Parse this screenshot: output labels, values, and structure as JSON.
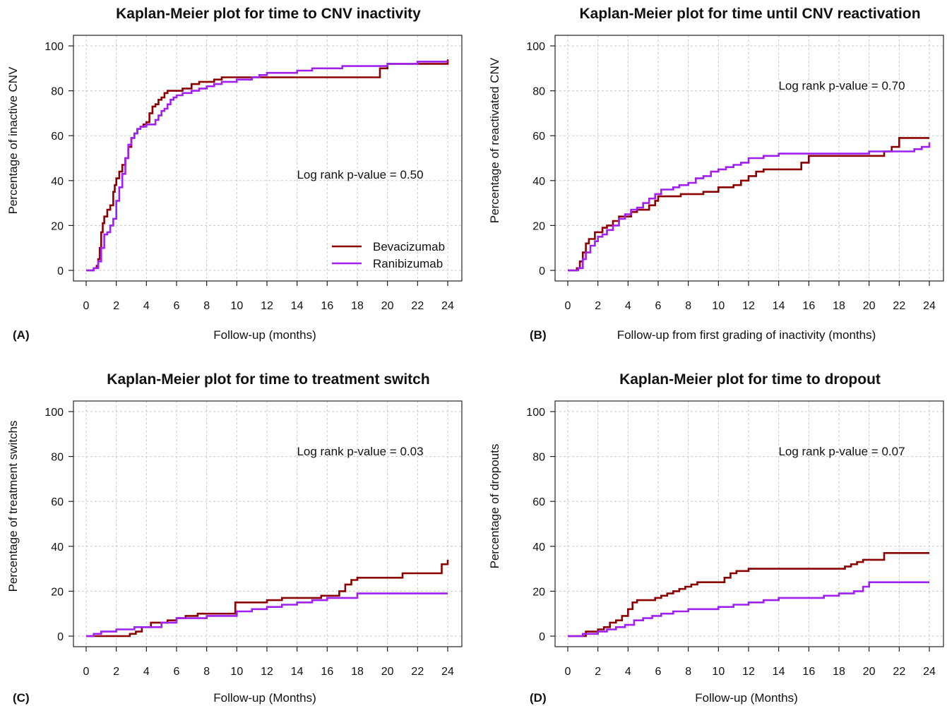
{
  "colors": {
    "Bevacizumab": "#8b0000",
    "Ranibizumab": "#a020f0"
  },
  "chart_data": [
    {
      "panel_label": "(A)",
      "type": "line",
      "step": true,
      "title": "Kaplan-Meier plot for time to CNV inactivity",
      "xlabel": "Follow-up (months)",
      "ylabel": "Percentage of inactive CNV",
      "xlim": [
        0,
        24
      ],
      "ylim": [
        0,
        100
      ],
      "xticks": [
        0,
        2,
        4,
        6,
        8,
        10,
        12,
        14,
        16,
        18,
        20,
        22,
        24
      ],
      "yticks": [
        0,
        20,
        40,
        60,
        80,
        100
      ],
      "grid": true,
      "annotation": "Log rank p-value = 0.50",
      "legend": {
        "position": "bottom-right",
        "entries": [
          "Bevacizumab",
          "Ranibizumab"
        ]
      },
      "series": [
        {
          "name": "Bevacizumab",
          "x": [
            0,
            0.5,
            0.7,
            0.8,
            0.9,
            1.0,
            1.1,
            1.2,
            1.4,
            1.6,
            1.8,
            1.9,
            2.0,
            2.2,
            2.4,
            2.6,
            2.8,
            3.0,
            3.2,
            3.4,
            3.6,
            3.8,
            4.0,
            4.2,
            4.4,
            4.6,
            4.8,
            5.0,
            5.2,
            5.4,
            5.6,
            6.0,
            6.4,
            7.0,
            7.5,
            8.0,
            8.5,
            9.0,
            10.0,
            11.0,
            12.0,
            19.0,
            19.5,
            20.0,
            21.0,
            22.0,
            23.0,
            24.0
          ],
          "y": [
            0,
            1,
            2,
            5,
            10,
            17,
            21,
            24,
            27,
            29,
            35,
            38,
            41,
            44,
            47,
            50,
            55,
            59,
            61,
            63,
            64,
            65,
            66,
            70,
            73,
            74,
            76,
            77,
            79,
            80,
            80,
            80,
            81,
            83,
            84,
            84,
            85,
            86,
            86,
            86,
            86,
            86,
            90,
            92,
            92,
            92,
            92,
            94
          ]
        },
        {
          "name": "Ranibizumab",
          "x": [
            0,
            0.5,
            0.8,
            1.0,
            1.2,
            1.4,
            1.6,
            1.8,
            2.0,
            2.2,
            2.4,
            2.6,
            2.8,
            3.0,
            3.2,
            3.4,
            3.6,
            3.8,
            4.0,
            4.2,
            4.4,
            4.6,
            4.8,
            5.0,
            5.2,
            5.4,
            5.6,
            5.8,
            6.0,
            6.4,
            7.0,
            7.5,
            8.0,
            8.5,
            9.0,
            9.5,
            10.0,
            11.0,
            11.5,
            12.0,
            13.0,
            14.0,
            15.0,
            16.0,
            17.0,
            18.0,
            19.0,
            20.0,
            21.0,
            22.0,
            23.0,
            24.0
          ],
          "y": [
            0,
            1,
            4,
            10,
            16,
            17,
            20,
            23,
            31,
            37,
            43,
            50,
            56,
            59,
            61,
            63,
            64,
            64,
            65,
            65,
            65,
            67,
            69,
            71,
            72,
            74,
            76,
            77,
            78,
            79,
            80,
            81,
            82,
            83,
            84,
            84,
            85,
            86,
            87,
            88,
            88,
            89,
            90,
            90,
            91,
            91,
            91,
            92,
            92,
            93,
            93,
            93
          ]
        }
      ]
    },
    {
      "panel_label": "(B)",
      "type": "line",
      "step": true,
      "title": "Kaplan-Meier plot for time until CNV reactivation",
      "xlabel": "Follow-up from first grading of inactivity (months)",
      "ylabel": "Percentage of reactivated CNV",
      "xlim": [
        0,
        24
      ],
      "ylim": [
        0,
        100
      ],
      "xticks": [
        0,
        2,
        4,
        6,
        8,
        10,
        12,
        14,
        16,
        18,
        20,
        22,
        24
      ],
      "yticks": [
        0,
        20,
        40,
        60,
        80,
        100
      ],
      "grid": true,
      "annotation": "Log rank p-value = 0.70",
      "series": [
        {
          "name": "Bevacizumab",
          "x": [
            0,
            0.6,
            0.8,
            1.0,
            1.2,
            1.4,
            1.6,
            1.8,
            2.0,
            2.3,
            2.6,
            3.0,
            3.4,
            3.8,
            4.2,
            4.6,
            5.0,
            5.4,
            5.8,
            6.0,
            7.0,
            7.5,
            8.0,
            9.0,
            10.0,
            11.0,
            11.5,
            12.0,
            12.5,
            13.0,
            14.0,
            15.0,
            15.5,
            16.0,
            17.0,
            18.0,
            19.0,
            20.0,
            21.0,
            21.5,
            22.0,
            23.0,
            24.0
          ],
          "y": [
            0,
            1,
            4,
            8,
            12,
            14,
            14,
            17,
            17,
            19,
            20,
            22,
            24,
            24,
            26,
            27,
            27,
            29,
            31,
            33,
            33,
            34,
            34,
            35,
            37,
            38,
            40,
            42,
            44,
            45,
            45,
            45,
            48,
            51,
            51,
            51,
            51,
            51,
            53,
            55,
            59,
            59,
            59
          ]
        },
        {
          "name": "Ranibizumab",
          "x": [
            0,
            0.7,
            1.0,
            1.2,
            1.5,
            1.8,
            2.0,
            2.3,
            2.6,
            3.0,
            3.4,
            3.8,
            4.2,
            4.6,
            5.0,
            5.4,
            5.8,
            6.2,
            7.0,
            7.4,
            8.0,
            8.5,
            9.0,
            9.5,
            10.0,
            10.5,
            11.0,
            11.5,
            12.0,
            13.0,
            14.0,
            15.0,
            16.0,
            17.0,
            18.0,
            19.0,
            20.0,
            21.0,
            22.0,
            23.0,
            23.5,
            24.0
          ],
          "y": [
            0,
            1,
            5,
            8,
            11,
            13,
            15,
            16,
            18,
            20,
            23,
            25,
            27,
            28,
            30,
            32,
            34,
            36,
            37,
            38,
            39,
            41,
            42,
            44,
            45,
            46,
            47,
            48,
            50,
            51,
            52,
            52,
            52,
            52,
            52,
            52,
            53,
            53,
            53,
            54,
            55,
            57
          ]
        }
      ]
    },
    {
      "panel_label": "(C)",
      "type": "line",
      "step": true,
      "title": "Kaplan-Meier plot for time to treatment switch",
      "xlabel": "Follow-up (Months)",
      "ylabel": "Percentage of treatment switchs",
      "xlim": [
        0,
        24
      ],
      "ylim": [
        0,
        100
      ],
      "xticks": [
        0,
        2,
        4,
        6,
        8,
        10,
        12,
        14,
        16,
        18,
        20,
        22,
        24
      ],
      "yticks": [
        0,
        20,
        40,
        60,
        80,
        100
      ],
      "grid": true,
      "annotation": "Log rank p-value = 0.03",
      "series": [
        {
          "name": "Bevacizumab",
          "x": [
            0,
            2.9,
            3.3,
            3.7,
            4.3,
            4.8,
            5.4,
            6.0,
            6.6,
            7.4,
            8.0,
            9.9,
            11.0,
            12.0,
            13.0,
            14.0,
            15.0,
            15.6,
            16.0,
            16.8,
            17.2,
            17.6,
            18.0,
            20.0,
            21.0,
            22.0,
            23.0,
            23.6,
            24.0
          ],
          "y": [
            0,
            1,
            2,
            4,
            6,
            6,
            7,
            8,
            9,
            10,
            10,
            15,
            15,
            16,
            17,
            17,
            17,
            18,
            18,
            20,
            23,
            25,
            26,
            26,
            28,
            28,
            28,
            32,
            34
          ]
        },
        {
          "name": "Ranibizumab",
          "x": [
            0,
            0.5,
            1.0,
            2.0,
            3.2,
            4.0,
            5.0,
            6.0,
            7.0,
            8.0,
            10.0,
            11.0,
            12.0,
            13.0,
            14.0,
            15.0,
            16.0,
            18.0,
            20.0,
            22.0,
            24.0
          ],
          "y": [
            0,
            1,
            2,
            3,
            4,
            4,
            6,
            8,
            8,
            9,
            11,
            12,
            13,
            14,
            15,
            16,
            17,
            19,
            19,
            19,
            19
          ]
        }
      ]
    },
    {
      "panel_label": "(D)",
      "type": "line",
      "step": true,
      "title": "Kaplan-Meier plot for time to dropout",
      "xlabel": "Follow-up (Months)",
      "ylabel": "Percentage of dropouts",
      "xlim": [
        0,
        24
      ],
      "ylim": [
        0,
        100
      ],
      "xticks": [
        0,
        2,
        4,
        6,
        8,
        10,
        12,
        14,
        16,
        18,
        20,
        22,
        24
      ],
      "yticks": [
        0,
        20,
        40,
        60,
        80,
        100
      ],
      "grid": true,
      "annotation": "Log rank p-value = 0.07",
      "series": [
        {
          "name": "Bevacizumab",
          "x": [
            0,
            1.2,
            2.0,
            2.4,
            2.8,
            3.2,
            3.6,
            4.0,
            4.3,
            4.6,
            5.0,
            5.4,
            5.8,
            6.2,
            6.6,
            7.0,
            7.4,
            7.8,
            8.2,
            8.6,
            9.0,
            9.4,
            10.0,
            10.4,
            10.8,
            11.2,
            12.0,
            14.0,
            16.0,
            17.0,
            18.0,
            18.4,
            18.8,
            19.2,
            19.6,
            20.2,
            21.0,
            24.0
          ],
          "y": [
            0,
            2,
            3,
            4,
            6,
            7,
            9,
            12,
            15,
            16,
            16,
            16,
            17,
            18,
            19,
            20,
            21,
            22,
            23,
            24,
            24,
            24,
            24,
            26,
            28,
            29,
            30,
            30,
            30,
            30,
            30,
            31,
            32,
            33,
            34,
            34,
            37,
            37
          ]
        },
        {
          "name": "Ranibizumab",
          "x": [
            0,
            1.0,
            2.0,
            2.6,
            3.2,
            3.8,
            4.4,
            5.0,
            5.6,
            6.2,
            7.0,
            8.0,
            9.0,
            10.0,
            11.0,
            12.0,
            13.0,
            14.0,
            15.0,
            16.0,
            17.0,
            18.0,
            19.0,
            19.6,
            20.0,
            21.0,
            22.0,
            24.0
          ],
          "y": [
            0,
            1,
            2,
            3,
            4,
            5,
            7,
            8,
            9,
            10,
            11,
            12,
            12,
            13,
            14,
            15,
            16,
            17,
            17,
            17,
            18,
            19,
            20,
            22,
            24,
            24,
            24,
            24
          ]
        }
      ]
    }
  ]
}
